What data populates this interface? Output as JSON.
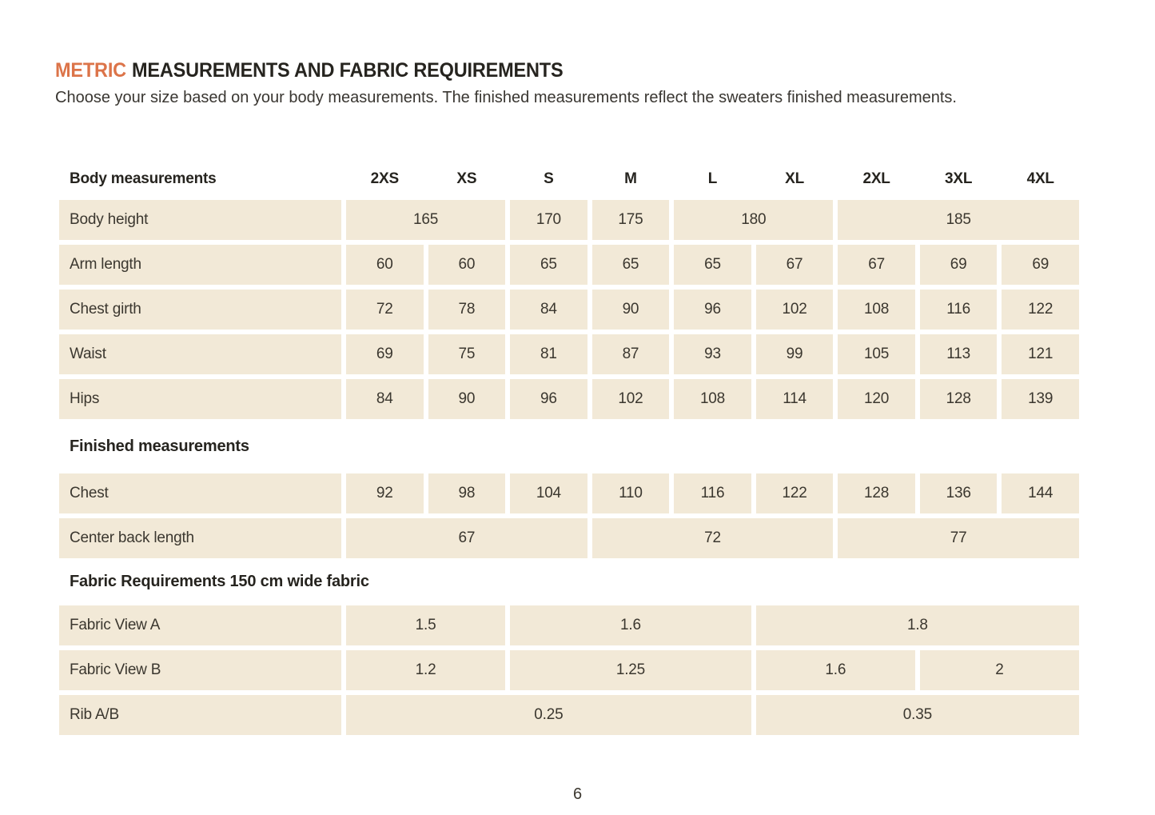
{
  "colors": {
    "accent": "#DC7449",
    "cell_bg": "#F2E9D7",
    "text": "#3B372F",
    "heading_text": "#26241F"
  },
  "header": {
    "title_accent": "METRIC",
    "title_rest": "MEASUREMENTS AND FABRIC REQUIREMENTS",
    "subtitle": "Choose your size based on your body measurements. The finished measurements reflect the sweaters finished measurements."
  },
  "table": {
    "corner_label": "Body measurements",
    "size_columns": [
      "2XS",
      "XS",
      "S",
      "M",
      "L",
      "XL",
      "2XL",
      "3XL",
      "4XL"
    ],
    "sections": [
      {
        "heading": "",
        "rows": [
          {
            "label": "Body height",
            "cells": [
              {
                "span": 2,
                "value": "165"
              },
              {
                "span": 1,
                "value": "170"
              },
              {
                "span": 1,
                "value": "175"
              },
              {
                "span": 2,
                "value": "180"
              },
              {
                "span": 3,
                "value": "185"
              }
            ]
          },
          {
            "label": "Arm length",
            "cells": [
              {
                "span": 1,
                "value": "60"
              },
              {
                "span": 1,
                "value": "60"
              },
              {
                "span": 1,
                "value": "65"
              },
              {
                "span": 1,
                "value": "65"
              },
              {
                "span": 1,
                "value": "65"
              },
              {
                "span": 1,
                "value": "67"
              },
              {
                "span": 1,
                "value": "67"
              },
              {
                "span": 1,
                "value": "69"
              },
              {
                "span": 1,
                "value": "69"
              }
            ]
          },
          {
            "label": "Chest girth",
            "cells": [
              {
                "span": 1,
                "value": "72"
              },
              {
                "span": 1,
                "value": "78"
              },
              {
                "span": 1,
                "value": "84"
              },
              {
                "span": 1,
                "value": "90"
              },
              {
                "span": 1,
                "value": "96"
              },
              {
                "span": 1,
                "value": "102"
              },
              {
                "span": 1,
                "value": "108"
              },
              {
                "span": 1,
                "value": "116"
              },
              {
                "span": 1,
                "value": "122"
              }
            ]
          },
          {
            "label": "Waist",
            "cells": [
              {
                "span": 1,
                "value": "69"
              },
              {
                "span": 1,
                "value": "75"
              },
              {
                "span": 1,
                "value": "81"
              },
              {
                "span": 1,
                "value": "87"
              },
              {
                "span": 1,
                "value": "93"
              },
              {
                "span": 1,
                "value": "99"
              },
              {
                "span": 1,
                "value": "105"
              },
              {
                "span": 1,
                "value": "113"
              },
              {
                "span": 1,
                "value": "121"
              }
            ]
          },
          {
            "label": "Hips",
            "cells": [
              {
                "span": 1,
                "value": "84"
              },
              {
                "span": 1,
                "value": "90"
              },
              {
                "span": 1,
                "value": "96"
              },
              {
                "span": 1,
                "value": "102"
              },
              {
                "span": 1,
                "value": "108"
              },
              {
                "span": 1,
                "value": "114"
              },
              {
                "span": 1,
                "value": "120"
              },
              {
                "span": 1,
                "value": "128"
              },
              {
                "span": 1,
                "value": "139"
              }
            ]
          }
        ]
      },
      {
        "heading": "Finished measurements",
        "rows": [
          {
            "label": "Chest",
            "cells": [
              {
                "span": 1,
                "value": "92"
              },
              {
                "span": 1,
                "value": "98"
              },
              {
                "span": 1,
                "value": "104"
              },
              {
                "span": 1,
                "value": "110"
              },
              {
                "span": 1,
                "value": "116"
              },
              {
                "span": 1,
                "value": "122"
              },
              {
                "span": 1,
                "value": "128"
              },
              {
                "span": 1,
                "value": "136"
              },
              {
                "span": 1,
                "value": "144"
              }
            ]
          },
          {
            "label": "Center back length",
            "cells": [
              {
                "span": 3,
                "value": "67"
              },
              {
                "span": 3,
                "value": "72"
              },
              {
                "span": 3,
                "value": "77"
              }
            ]
          }
        ]
      },
      {
        "heading": "Fabric Requirements 150 cm wide fabric",
        "rows": [
          {
            "label": "Fabric View A",
            "cells": [
              {
                "span": 2,
                "value": "1.5"
              },
              {
                "span": 3,
                "value": "1.6"
              },
              {
                "span": 4,
                "value": "1.8"
              }
            ]
          },
          {
            "label": "Fabric View B",
            "cells": [
              {
                "span": 2,
                "value": "1.2"
              },
              {
                "span": 3,
                "value": "1.25"
              },
              {
                "span": 2,
                "value": "1.6"
              },
              {
                "span": 2,
                "value": "2"
              }
            ]
          },
          {
            "label": "Rib A/B",
            "cells": [
              {
                "span": 5,
                "value": "0.25"
              },
              {
                "span": 4,
                "value": "0.35"
              }
            ]
          }
        ]
      }
    ]
  },
  "footer": {
    "page_number": "6"
  }
}
